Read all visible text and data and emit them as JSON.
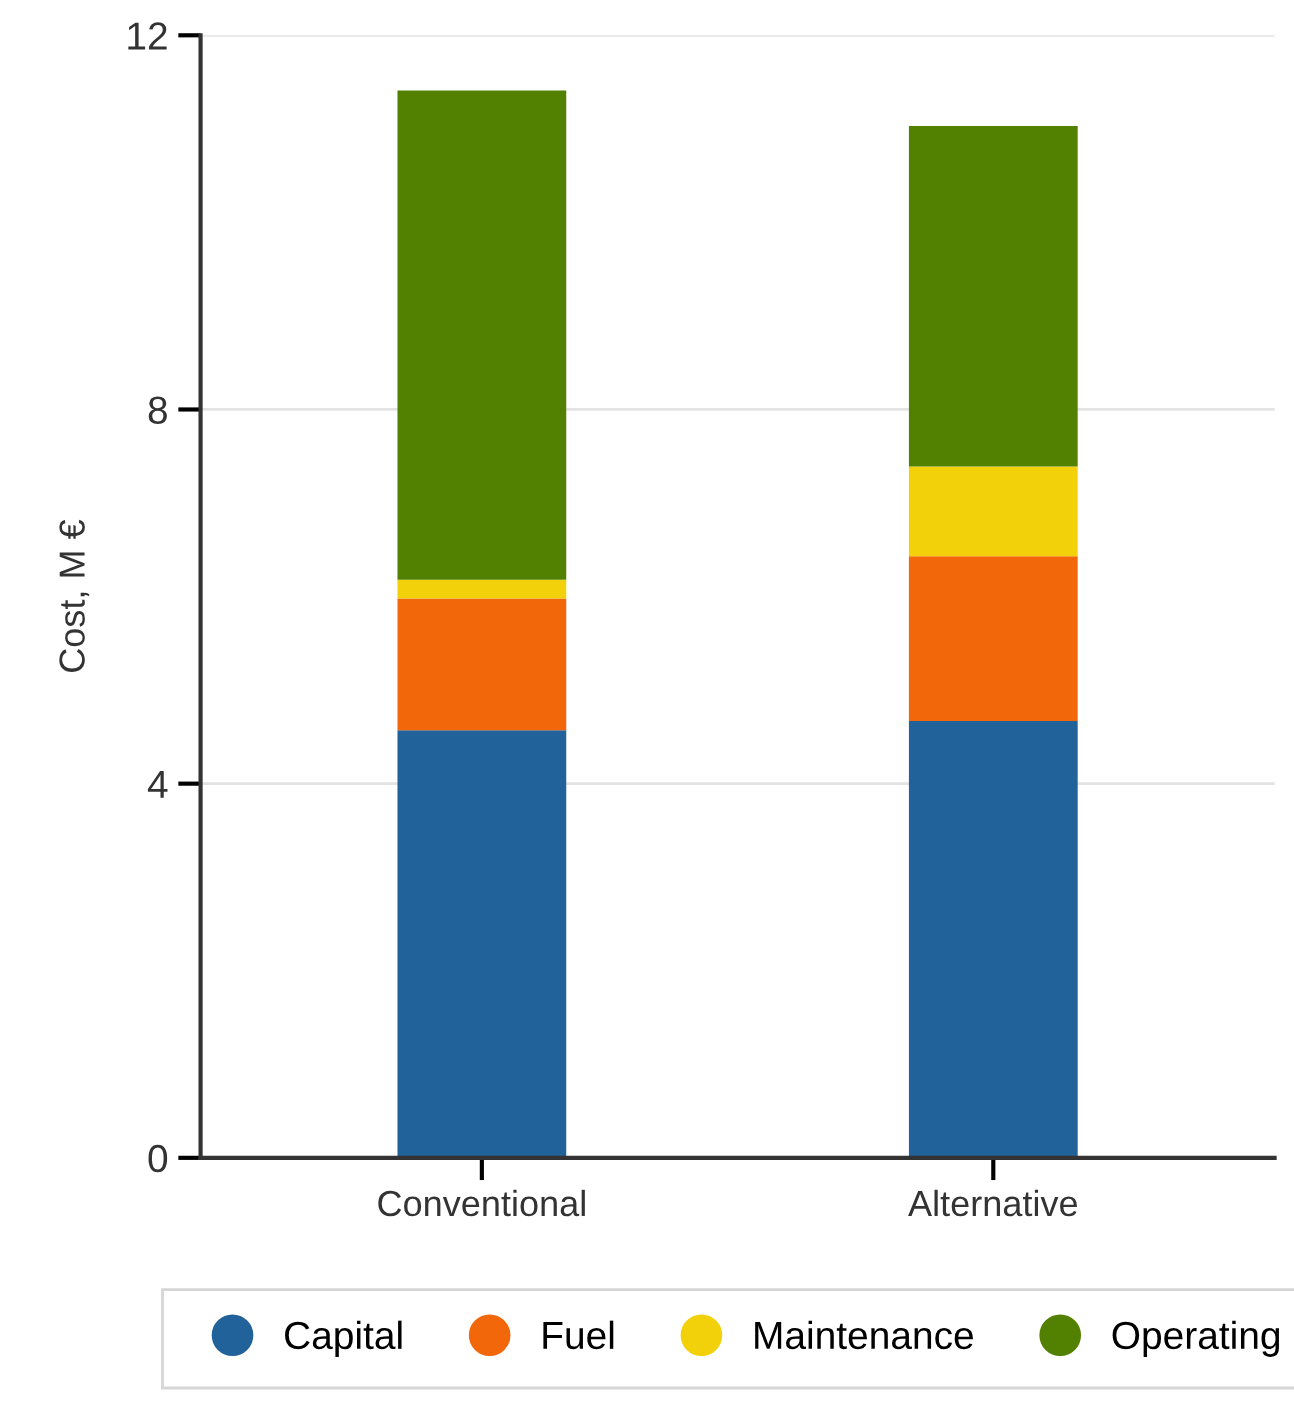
{
  "chart_data": {
    "type": "bar",
    "stacked": true,
    "ylabel": "Cost, M €",
    "categories": [
      "Conventional",
      "Alternative"
    ],
    "series": [
      {
        "name": "Capital",
        "color": "#22629a",
        "values": [
          4.57,
          4.67
        ]
      },
      {
        "name": "Fuel",
        "color": "#f2670a",
        "values": [
          1.41,
          1.76
        ]
      },
      {
        "name": "Maintenance",
        "color": "#f2d10a",
        "values": [
          0.2,
          0.96
        ]
      },
      {
        "name": "Operating",
        "color": "#528000",
        "values": [
          5.23,
          3.64
        ]
      }
    ],
    "ylim": [
      0,
      12
    ],
    "yticks": [
      0,
      4,
      8,
      12
    ],
    "grid": "y",
    "legend": "bottom"
  }
}
